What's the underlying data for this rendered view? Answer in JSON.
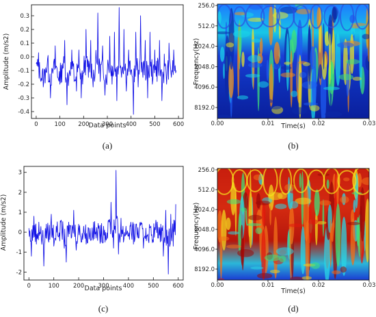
{
  "colors": {
    "signal": "#1515e6",
    "axes": "#111111"
  },
  "chart_data": [
    {
      "panel": "(a)",
      "type": "line",
      "xlabel": "Data points",
      "ylabel": "Amplitude (m/s2)",
      "xlim": [
        -20,
        620
      ],
      "ylim": [
        -0.45,
        0.38
      ],
      "xticks": [
        0,
        100,
        200,
        300,
        400,
        500,
        600
      ],
      "yticks": [
        0.3,
        0.2,
        0.1,
        0.0,
        -0.1,
        -0.2,
        -0.3,
        -0.4
      ],
      "ytick_labels": [
        "0.3",
        "0.2",
        "0.1",
        "0.0",
        "-0.1",
        "-0.2",
        "-0.3",
        "-0.4"
      ],
      "series": [
        {
          "values_note_key": "y",
          "x": [
            0,
            10,
            20,
            30,
            40,
            50,
            60,
            70,
            80,
            90,
            100,
            110,
            120,
            130,
            140,
            150,
            160,
            170,
            180,
            190,
            200,
            210,
            220,
            230,
            240,
            250,
            260,
            270,
            280,
            290,
            300,
            310,
            320,
            330,
            340,
            350,
            360,
            370,
            380,
            390,
            400,
            410,
            420,
            430,
            440,
            450,
            460,
            470,
            480,
            490,
            500,
            510,
            520,
            530,
            540,
            550,
            560,
            570,
            580,
            590
          ],
          "y": [
            -0.05,
            0.03,
            -0.18,
            -0.22,
            -0.08,
            0.01,
            -0.3,
            -0.12,
            0.08,
            -0.15,
            -0.2,
            -0.05,
            0.12,
            -0.35,
            -0.1,
            0.05,
            -0.18,
            -0.25,
            0.05,
            -0.3,
            -0.12,
            0.2,
            -0.15,
            0.12,
            -0.22,
            -0.05,
            0.32,
            -0.18,
            0.08,
            -0.28,
            -0.1,
            0.15,
            -0.2,
            0.18,
            -0.32,
            0.36,
            -0.15,
            0.2,
            -0.25,
            0.05,
            -0.1,
            -0.42,
            0.18,
            -0.22,
            0.3,
            -0.15,
            0.12,
            -0.3,
            0.18,
            -0.2,
            0.05,
            -0.18,
            0.12,
            -0.32,
            0.02,
            -0.2,
            0.1,
            -0.15,
            0.05,
            -0.1
          ]
        }
      ]
    },
    {
      "panel": "(b)",
      "type": "heatmap",
      "xlabel": "Time(s)",
      "ylabel": "Frequency(Hz)",
      "xticks": [
        "0.00",
        "0.01",
        "0.02",
        "0.03"
      ],
      "yticks": [
        "256.0",
        "512.0",
        "1024.0",
        "2048.0",
        "4096.0",
        "8192.0"
      ],
      "colormap": "jet",
      "dominant_level": "low-to-mid (blue/cyan with green and yellow streaks)"
    },
    {
      "panel": "(c)",
      "type": "line",
      "xlabel": "Data points",
      "ylabel": "Amplitude (m/s2)",
      "xlim": [
        -20,
        620
      ],
      "ylim": [
        -2.4,
        3.3
      ],
      "xticks": [
        0,
        100,
        200,
        300,
        400,
        500,
        600
      ],
      "yticks": [
        3,
        2,
        1,
        0,
        -1,
        -2
      ],
      "ytick_labels": [
        "3",
        "2",
        "1",
        "0",
        "-1",
        "-2"
      ],
      "series": [
        {
          "x": [
            0,
            10,
            20,
            30,
            40,
            50,
            60,
            70,
            80,
            90,
            100,
            110,
            120,
            130,
            140,
            150,
            160,
            170,
            180,
            190,
            200,
            210,
            220,
            230,
            240,
            250,
            260,
            270,
            280,
            290,
            300,
            310,
            320,
            330,
            340,
            350,
            360,
            370,
            380,
            390,
            400,
            410,
            420,
            430,
            440,
            450,
            460,
            470,
            480,
            490,
            500,
            510,
            520,
            530,
            540,
            550,
            560,
            570,
            580,
            590
          ],
          "y": [
            0.2,
            -1.2,
            0.8,
            -0.6,
            0.5,
            -0.3,
            -1.7,
            0.4,
            -0.5,
            0.9,
            -0.7,
            0.3,
            -0.2,
            0.6,
            -0.4,
            -1.5,
            0.5,
            -0.3,
            1.1,
            -0.9,
            0.4,
            -0.5,
            0.3,
            -0.6,
            0.2,
            -0.4,
            0.5,
            -0.3,
            0.2,
            -0.5,
            0.3,
            -0.4,
            0.6,
            1.5,
            -0.8,
            3.1,
            -1.1,
            0.7,
            -0.5,
            0.3,
            -0.2,
            0.5,
            -0.6,
            0.4,
            -0.3,
            0.5,
            -0.8,
            0.2,
            -0.4,
            0.3,
            -0.5,
            0.6,
            -0.3,
            0.4,
            -1.2,
            1.1,
            -2.1,
            0.9,
            -0.7,
            1.4
          ]
        }
      ]
    },
    {
      "panel": "(d)",
      "type": "heatmap",
      "xlabel": "Time(s)",
      "ylabel": "Frequency(Hz)",
      "xticks": [
        "0.00",
        "0.01",
        "0.02",
        "0.03"
      ],
      "yticks": [
        "256.0",
        "512.0",
        "1024.0",
        "2048.0",
        "4096.0",
        "8192.0"
      ],
      "colormap": "jet",
      "dominant_level": "high (red/orange with yellow and cyan patches, blue at high frequencies)"
    }
  ]
}
